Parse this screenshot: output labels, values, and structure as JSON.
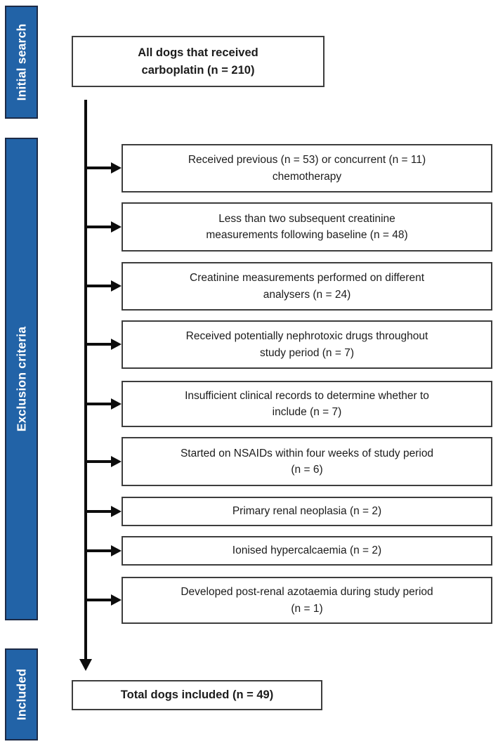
{
  "figure": {
    "type": "study-flow-diagram",
    "colors": {
      "stage_bar_fill": "#2263A7",
      "stage_bar_border": "#1d2b47",
      "stage_bar_text": "#ffffff",
      "box_border": "#3d3d3d",
      "box_text": "#1c1c1c",
      "arrow": "#0d0d0d",
      "background": "#ffffff"
    }
  },
  "stages": [
    {
      "label": "Initial search"
    },
    {
      "label": "Exclusion criteria"
    },
    {
      "label": "Included"
    }
  ],
  "nodes": {
    "start": {
      "lines": [
        "All dogs that received",
        "carboplatin (n = 210)"
      ],
      "n": 210
    },
    "end": {
      "lines": [
        "Total dogs included (n = 49)"
      ],
      "n": 49
    }
  },
  "exclusion": {
    "items": [
      {
        "lines": [
          "Received previous (n = 53) or concurrent (n = 11)",
          "chemotherapy"
        ],
        "n_previous": 53,
        "n_concurrent": 11
      },
      {
        "lines": [
          "Less than two subsequent creatinine",
          "measurements following baseline (n = 48)"
        ],
        "n": 48
      },
      {
        "lines": [
          "Creatinine measurements performed on different",
          "analysers (n = 24)"
        ],
        "n": 24
      },
      {
        "lines": [
          "Received potentially nephrotoxic drugs throughout",
          "study period (n = 7)"
        ],
        "n": 7
      },
      {
        "lines": [
          "Insufficient clinical records to determine whether to",
          "include (n = 7)"
        ],
        "n": 7
      },
      {
        "lines": [
          "Started on NSAIDs within four weeks of study period",
          "(n = 6)"
        ],
        "n": 6
      },
      {
        "lines": [
          "Primary renal neoplasia (n = 2)"
        ],
        "n": 2
      },
      {
        "lines": [
          "Ionised hypercalcaemia (n = 2)"
        ],
        "n": 2
      },
      {
        "lines": [
          "Developed post-renal azotaemia during study period",
          "(n = 1)"
        ],
        "n": 1
      }
    ]
  }
}
